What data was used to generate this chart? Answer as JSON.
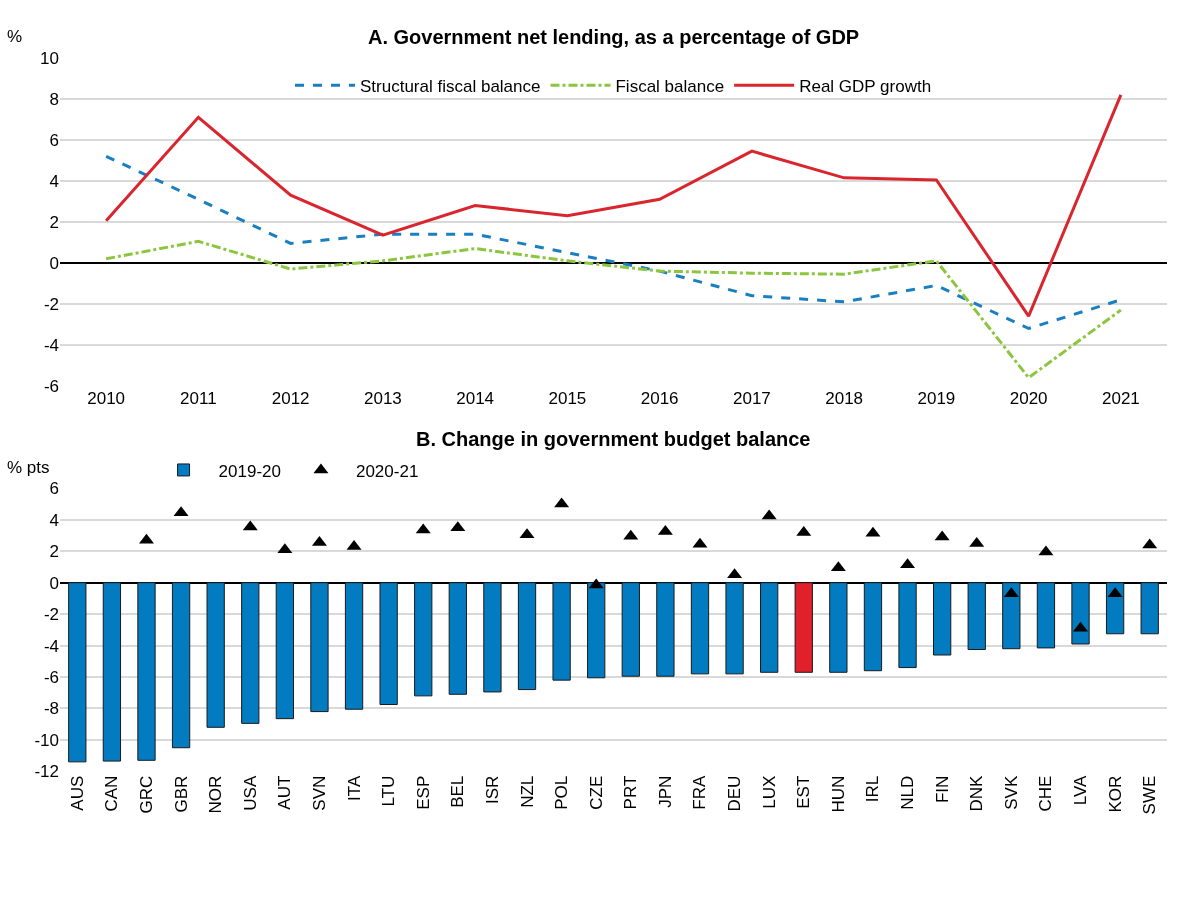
{
  "chart_data": [
    {
      "type": "line",
      "title": "A. Government net lending, as a percentage of GDP",
      "ylabel": "%",
      "categories": [
        "2010",
        "2011",
        "2012",
        "2013",
        "2014",
        "2015",
        "2016",
        "2017",
        "2018",
        "2019",
        "2020",
        "2021"
      ],
      "series": [
        {
          "name": "Structural fiscal balance",
          "color": "#1a7fc1",
          "line_style": "dashed",
          "values": [
            5.2,
            3.1,
            0.95,
            1.4,
            1.4,
            0.5,
            -0.4,
            -1.6,
            -1.9,
            -1.1,
            -3.2,
            -1.8
          ]
        },
        {
          "name": "Fiscal balance",
          "color": "#8cc63f",
          "line_style": "dashdot",
          "values": [
            0.2,
            1.05,
            -0.3,
            0.1,
            0.7,
            0.1,
            -0.4,
            -0.5,
            -0.55,
            0.1,
            -5.6,
            -2.3
          ]
        },
        {
          "name": "Real GDP growth",
          "color": "#d9262e",
          "line_style": "solid",
          "values": [
            2.05,
            7.1,
            3.3,
            1.35,
            2.8,
            2.3,
            3.1,
            5.45,
            4.15,
            4.05,
            -2.6,
            8.2
          ]
        }
      ],
      "ylim": [
        -6,
        10
      ],
      "yticks": [
        -6,
        -4,
        -2,
        0,
        2,
        4,
        6,
        8,
        10
      ],
      "grid": "y",
      "legend": "top",
      "marker": "none"
    },
    {
      "type": "bar",
      "title": "B. Change in government budget balance",
      "ylabel": "% pts",
      "categories": [
        "AUS",
        "CAN",
        "GRC",
        "GBR",
        "NOR",
        "USA",
        "AUT",
        "SVN",
        "ITA",
        "LTU",
        "ESP",
        "BEL",
        "ISR",
        "NZL",
        "POL",
        "CZE",
        "PRT",
        "JPN",
        "FRA",
        "DEU",
        "LUX",
        "EST",
        "HUN",
        "IRL",
        "NLD",
        "FIN",
        "DNK",
        "SVK",
        "CHE",
        "LVA",
        "KOR",
        "SWE"
      ],
      "series": [
        {
          "name": "2019-20",
          "type": "bar",
          "color": "#037bc1",
          "colors": [
            "#037bc1",
            "#037bc1",
            "#037bc1",
            "#037bc1",
            "#037bc1",
            "#037bc1",
            "#037bc1",
            "#037bc1",
            "#037bc1",
            "#037bc1",
            "#037bc1",
            "#037bc1",
            "#037bc1",
            "#037bc1",
            "#037bc1",
            "#037bc1",
            "#037bc1",
            "#037bc1",
            "#037bc1",
            "#037bc1",
            "#037bc1",
            "#e0202a",
            "#037bc1",
            "#037bc1",
            "#037bc1",
            "#037bc1",
            "#037bc1",
            "#037bc1",
            "#037bc1",
            "#037bc1",
            "#037bc1",
            "#037bc1"
          ],
          "values": [
            -11.4,
            -11.35,
            -11.3,
            -10.5,
            -9.2,
            -8.95,
            -8.65,
            -8.2,
            -8.05,
            -7.75,
            -7.2,
            -7.1,
            -6.95,
            -6.8,
            -6.2,
            -6.05,
            -5.95,
            -5.95,
            -5.8,
            -5.8,
            -5.7,
            -5.7,
            -5.7,
            -5.6,
            -5.4,
            -4.6,
            -4.25,
            -4.2,
            -4.15,
            -3.9,
            -3.25,
            -3.25
          ]
        },
        {
          "name": "2020-21",
          "type": "scatter",
          "color": "#000000",
          "marker": "triangle",
          "values": [
            null,
            null,
            2.7,
            4.45,
            null,
            3.55,
            2.1,
            2.55,
            2.3,
            null,
            3.35,
            3.5,
            null,
            3.05,
            5.0,
            -0.15,
            2.95,
            3.25,
            2.45,
            0.5,
            4.25,
            3.2,
            0.95,
            3.15,
            1.15,
            2.9,
            2.5,
            -0.7,
            1.95,
            -2.9,
            -0.7,
            2.4
          ]
        }
      ],
      "ylim": [
        -12,
        6
      ],
      "yticks": [
        -12,
        -10,
        -8,
        -6,
        -4,
        -2,
        0,
        2,
        4,
        6
      ],
      "grid": "y",
      "legend": "top left"
    }
  ]
}
